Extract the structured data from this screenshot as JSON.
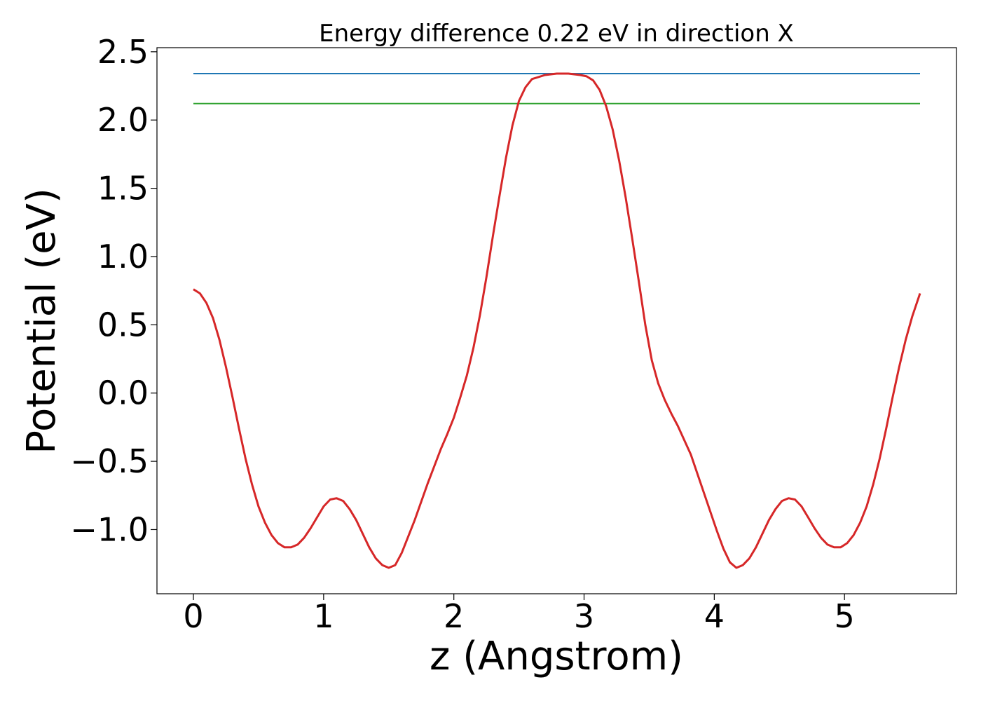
{
  "chart_data": {
    "type": "line",
    "title": "Energy difference 0.22 eV in direction X",
    "xlabel": "z (Angstrom)",
    "ylabel": "Potential (eV)",
    "xlim": [
      -0.28,
      5.86
    ],
    "ylim": [
      -1.47,
      2.53
    ],
    "x_ticks": [
      0,
      1,
      2,
      3,
      4,
      5
    ],
    "x_tick_labels": [
      "0",
      "1",
      "2",
      "3",
      "4",
      "5"
    ],
    "y_ticks": [
      -1.0,
      -0.5,
      0.0,
      0.5,
      1.0,
      1.5,
      2.0,
      2.5
    ],
    "y_tick_labels": [
      "−1.0",
      "−0.5",
      "0.0",
      "0.5",
      "1.0",
      "1.5",
      "2.0",
      "2.5"
    ],
    "grid": false,
    "series": [
      {
        "color": "#1f77b4",
        "style": "hline",
        "x": [
          0.0,
          5.58
        ],
        "y": [
          2.34,
          2.34
        ]
      },
      {
        "color": "#2ca02c",
        "style": "hline",
        "x": [
          0.0,
          5.58
        ],
        "y": [
          2.12,
          2.12
        ]
      },
      {
        "color": "#d62728",
        "style": "line",
        "x": [
          0.0,
          0.05,
          0.1,
          0.15,
          0.2,
          0.25,
          0.3,
          0.35,
          0.4,
          0.45,
          0.5,
          0.55,
          0.6,
          0.65,
          0.7,
          0.75,
          0.8,
          0.85,
          0.9,
          0.95,
          1.0,
          1.05,
          1.1,
          1.15,
          1.2,
          1.25,
          1.3,
          1.35,
          1.4,
          1.45,
          1.5,
          1.55,
          1.6,
          1.7,
          1.8,
          1.9,
          1.95,
          2.0,
          2.05,
          2.1,
          2.15,
          2.2,
          2.25,
          2.3,
          2.35,
          2.4,
          2.45,
          2.5,
          2.55,
          2.6,
          2.7,
          2.79,
          2.88,
          2.97,
          3.02,
          3.07,
          3.12,
          3.17,
          3.22,
          3.27,
          3.32,
          3.37,
          3.42,
          3.47,
          3.52,
          3.57,
          3.62,
          3.67,
          3.72,
          3.82,
          3.92,
          4.02,
          4.07,
          4.12,
          4.17,
          4.22,
          4.27,
          4.32,
          4.37,
          4.42,
          4.47,
          4.52,
          4.57,
          4.62,
          4.67,
          4.72,
          4.77,
          4.82,
          4.87,
          4.92,
          4.97,
          5.02,
          5.07,
          5.12,
          5.17,
          5.22,
          5.27,
          5.32,
          5.37,
          5.42,
          5.47,
          5.52,
          5.58
        ],
        "y": [
          0.76,
          0.73,
          0.66,
          0.55,
          0.39,
          0.19,
          -0.03,
          -0.26,
          -0.48,
          -0.67,
          -0.83,
          -0.95,
          -1.04,
          -1.1,
          -1.13,
          -1.13,
          -1.11,
          -1.06,
          -0.99,
          -0.91,
          -0.83,
          -0.78,
          -0.77,
          -0.79,
          -0.85,
          -0.93,
          -1.03,
          -1.13,
          -1.21,
          -1.26,
          -1.28,
          -1.26,
          -1.17,
          -0.93,
          -0.66,
          -0.41,
          -0.3,
          -0.18,
          -0.03,
          0.13,
          0.33,
          0.57,
          0.85,
          1.15,
          1.44,
          1.72,
          1.96,
          2.14,
          2.24,
          2.3,
          2.33,
          2.34,
          2.34,
          2.33,
          2.32,
          2.29,
          2.22,
          2.1,
          1.93,
          1.7,
          1.43,
          1.13,
          0.82,
          0.5,
          0.24,
          0.07,
          -0.05,
          -0.15,
          -0.24,
          -0.45,
          -0.73,
          -1.01,
          -1.14,
          -1.24,
          -1.28,
          -1.26,
          -1.21,
          -1.13,
          -1.03,
          -0.93,
          -0.85,
          -0.79,
          -0.77,
          -0.78,
          -0.83,
          -0.91,
          -0.99,
          -1.06,
          -1.11,
          -1.13,
          -1.13,
          -1.1,
          -1.04,
          -0.95,
          -0.83,
          -0.67,
          -0.48,
          -0.26,
          -0.03,
          0.19,
          0.39,
          0.56,
          0.73
        ]
      }
    ]
  }
}
